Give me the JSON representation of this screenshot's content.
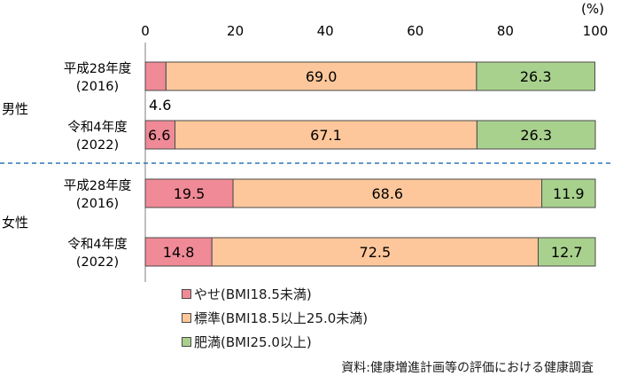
{
  "chart_data": {
    "type": "stacked-bar-horizontal",
    "unit_label": "(%)",
    "xlim": [
      0,
      100
    ],
    "xticks": [
      "0",
      "20",
      "40",
      "60",
      "80",
      "100"
    ],
    "xtick_values": [
      0,
      20,
      40,
      60,
      80,
      100
    ],
    "colors": {
      "yase": "#f08a96",
      "hyojun": "#fdc79b",
      "himan": "#a9d18e",
      "separator": "#2e75b6",
      "axis": "#7f7f7f"
    },
    "series": [
      {
        "name": "やせ(BMI18.5未満)",
        "key": "yase"
      },
      {
        "name": "標準(BMI18.5以上25.0未満)",
        "key": "hyojun"
      },
      {
        "name": "肥満(BMI25.0以上)",
        "key": "himan"
      }
    ],
    "groups": [
      {
        "name": "男性",
        "bars": [
          {
            "label_line1": "平成28年度",
            "label_line2": "(2016)",
            "values": [
              4.6,
              69.0,
              26.3
            ],
            "labels": [
              "4.6",
              "69.0",
              "26.3"
            ],
            "outside_first_label": true
          },
          {
            "label_line1": "令和4年度",
            "label_line2": "(2022)",
            "values": [
              6.6,
              67.1,
              26.3
            ],
            "labels": [
              "6.6",
              "67.1",
              "26.3"
            ],
            "outside_first_label": false
          }
        ]
      },
      {
        "name": "女性",
        "bars": [
          {
            "label_line1": "平成28年度",
            "label_line2": "(2016)",
            "values": [
              19.5,
              68.6,
              11.9
            ],
            "labels": [
              "19.5",
              "68.6",
              "11.9"
            ],
            "outside_first_label": false
          },
          {
            "label_line1": "令和4年度",
            "label_line2": "(2022)",
            "values": [
              14.8,
              72.5,
              12.7
            ],
            "labels": [
              "14.8",
              "72.5",
              "12.7"
            ],
            "outside_first_label": false
          }
        ]
      }
    ]
  },
  "legend": {
    "items": [
      "やせ(BMI18.5未満)",
      "標準(BMI18.5以上25.0未満)",
      "肥満(BMI25.0以上)"
    ]
  },
  "source": "資料:健康増進計画等の評価における健康調査"
}
